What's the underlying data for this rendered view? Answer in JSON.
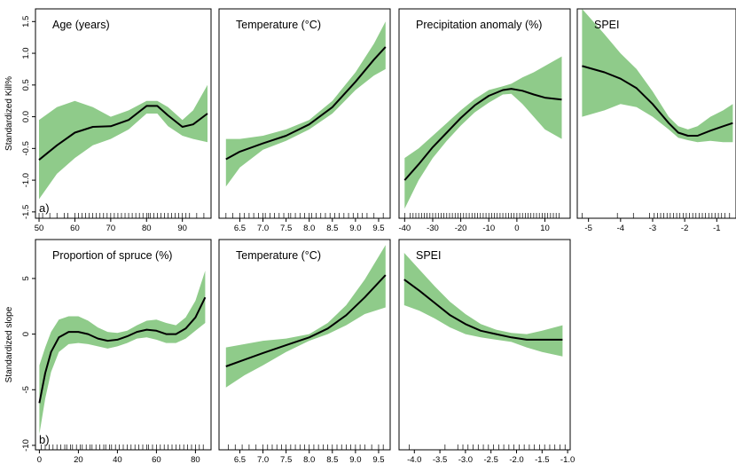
{
  "chart_data": [
    {
      "type": "line",
      "row": 1,
      "col": 0,
      "title": "Age (years)",
      "ylabel": "Standardized Kill%",
      "panel_label": "a)",
      "xlim": [
        49,
        98
      ],
      "ylim": [
        -1.6,
        1.7
      ],
      "xticks": [
        50,
        60,
        70,
        80,
        90
      ],
      "xtick_labels": [
        "50",
        "60",
        "70",
        "80",
        "90"
      ],
      "yticks": [
        -1.5,
        -1.0,
        -0.5,
        0.0,
        0.5,
        1.0,
        1.5
      ],
      "ytick_labels": [
        "-1.5",
        "-1.0",
        "-0.5",
        "0.0",
        "0.5",
        "1.0",
        "1.5"
      ],
      "fit": {
        "x": [
          50,
          55,
          60,
          65,
          70,
          75,
          80,
          83,
          86,
          90,
          93,
          97
        ],
        "y": [
          -0.68,
          -0.45,
          -0.25,
          -0.16,
          -0.15,
          -0.05,
          0.17,
          0.17,
          0.02,
          -0.16,
          -0.12,
          0.05
        ]
      },
      "ci_upper": [
        -0.05,
        0.15,
        0.25,
        0.15,
        0.0,
        0.1,
        0.25,
        0.25,
        0.15,
        -0.05,
        0.1,
        0.5
      ],
      "ci_lower": [
        -1.3,
        -0.9,
        -0.65,
        -0.45,
        -0.35,
        -0.2,
        0.05,
        0.05,
        -0.15,
        -0.3,
        -0.35,
        -0.4
      ],
      "rug": [
        50,
        51,
        53,
        55,
        57,
        58,
        60,
        61,
        62,
        63,
        64,
        65,
        66,
        67,
        68,
        69,
        70,
        71,
        72,
        73,
        74,
        75,
        76,
        77,
        78,
        79,
        80,
        80.5,
        81,
        82,
        83,
        84,
        85,
        86,
        87,
        88,
        89,
        90,
        91,
        92,
        94,
        96
      ]
    },
    {
      "type": "line",
      "row": 1,
      "col": 1,
      "title": "Temperature (°C)",
      "xlim": [
        6.05,
        9.75
      ],
      "ylim": [
        -1.6,
        1.7
      ],
      "xticks": [
        6.5,
        7.0,
        7.5,
        8.0,
        8.5,
        9.0,
        9.5
      ],
      "xtick_labels": [
        "6.5",
        "7.0",
        "7.5",
        "8.0",
        "8.5",
        "9.0",
        "9.5"
      ],
      "fit": {
        "x": [
          6.2,
          6.5,
          7.0,
          7.5,
          8.0,
          8.5,
          9.0,
          9.4,
          9.65
        ],
        "y": [
          -0.67,
          -0.55,
          -0.42,
          -0.3,
          -0.12,
          0.15,
          0.55,
          0.9,
          1.1
        ]
      },
      "ci_upper": [
        -0.35,
        -0.35,
        -0.3,
        -0.2,
        -0.05,
        0.25,
        0.7,
        1.15,
        1.5
      ],
      "ci_lower": [
        -1.1,
        -0.8,
        -0.52,
        -0.38,
        -0.2,
        0.05,
        0.42,
        0.65,
        0.75
      ],
      "rug": [
        6.2,
        6.35,
        6.5,
        6.6,
        6.7,
        6.8,
        6.9,
        7.0,
        7.05,
        7.15,
        7.25,
        7.35,
        7.45,
        7.55,
        7.6,
        7.7,
        7.8,
        7.9,
        8.0,
        8.05,
        8.15,
        8.25,
        8.35,
        8.45,
        8.55,
        8.65,
        8.75,
        8.85,
        8.95,
        9.05,
        9.15,
        9.25,
        9.4,
        9.6
      ]
    },
    {
      "type": "line",
      "row": 1,
      "col": 2,
      "title": "Precipitation anomaly (%)",
      "xlim": [
        -42,
        19
      ],
      "ylim": [
        -1.6,
        1.7
      ],
      "xticks": [
        -40,
        -30,
        -20,
        -10,
        0,
        10
      ],
      "xtick_labels": [
        "-40",
        "-30",
        "-20",
        "-10",
        "0",
        "10"
      ],
      "fit": {
        "x": [
          -40,
          -35,
          -30,
          -25,
          -20,
          -15,
          -10,
          -5,
          -2,
          2,
          6,
          10,
          16
        ],
        "y": [
          -1.0,
          -0.75,
          -0.48,
          -0.25,
          -0.02,
          0.18,
          0.33,
          0.42,
          0.44,
          0.41,
          0.35,
          0.3,
          0.27
        ]
      },
      "ci_upper": [
        -0.65,
        -0.5,
        -0.3,
        -0.1,
        0.1,
        0.28,
        0.42,
        0.48,
        0.52,
        0.62,
        0.7,
        0.8,
        0.95
      ],
      "ci_lower": [
        -1.45,
        -1.0,
        -0.65,
        -0.38,
        -0.14,
        0.07,
        0.22,
        0.35,
        0.36,
        0.2,
        0.0,
        -0.2,
        -0.35
      ],
      "rug": [
        -40,
        -38,
        -37,
        -36,
        -35,
        -34,
        -33,
        -32,
        -31,
        -30,
        -29,
        -28,
        -27,
        -26,
        -25,
        -24,
        -23,
        -22,
        -21,
        -20,
        -19,
        -18,
        -17,
        -16,
        -15,
        -14,
        -13,
        -12,
        -11,
        -10,
        -9,
        -8,
        -7,
        -6,
        -5,
        -4,
        -3,
        -2,
        -1,
        0,
        1,
        2,
        3,
        4,
        5,
        6,
        7,
        8,
        9,
        10,
        11,
        12,
        13,
        14,
        15
      ]
    },
    {
      "type": "line",
      "row": 1,
      "col": 3,
      "title": "SPEI",
      "xlim": [
        -5.35,
        -0.4
      ],
      "ylim": [
        -1.6,
        1.7
      ],
      "xticks": [
        -5,
        -4,
        -3,
        -2,
        -1
      ],
      "xtick_labels": [
        "-5",
        "-4",
        "-3",
        "-2",
        "-1"
      ],
      "fit": {
        "x": [
          -5.2,
          -4.5,
          -4.0,
          -3.5,
          -3.0,
          -2.5,
          -2.2,
          -1.9,
          -1.6,
          -1.2,
          -0.8,
          -0.5
        ],
        "y": [
          0.8,
          0.7,
          0.6,
          0.45,
          0.2,
          -0.1,
          -0.25,
          -0.3,
          -0.3,
          -0.22,
          -0.15,
          -0.1
        ]
      },
      "ci_upper": [
        1.7,
        1.3,
        1.0,
        0.75,
        0.4,
        0.0,
        -0.15,
        -0.2,
        -0.15,
        0.0,
        0.1,
        0.2
      ],
      "ci_lower": [
        0.0,
        0.1,
        0.2,
        0.15,
        0.0,
        -0.2,
        -0.33,
        -0.37,
        -0.4,
        -0.38,
        -0.4,
        -0.4
      ],
      "rug": [
        -5.2,
        -4.1,
        -3.6,
        -3.1,
        -2.95,
        -2.85,
        -2.75,
        -2.65,
        -2.55,
        -2.45,
        -2.35,
        -2.25,
        -2.15,
        -2.05,
        -1.95,
        -1.85,
        -1.75,
        -1.65,
        -1.55,
        -1.45,
        -1.35,
        -1.25,
        -1.15,
        -1.05,
        -0.95,
        -0.85,
        -0.75,
        -0.6
      ]
    },
    {
      "type": "line",
      "row": 2,
      "col": 0,
      "title": "Proportion of spruce (%)",
      "ylabel": "Standardized slope",
      "panel_label": "b)",
      "xlim": [
        -2,
        88
      ],
      "ylim": [
        -10.4,
        8.5
      ],
      "xticks": [
        0,
        20,
        40,
        60,
        80
      ],
      "xtick_labels": [
        "0",
        "20",
        "40",
        "60",
        "80"
      ],
      "yticks": [
        -10,
        -5,
        0,
        5
      ],
      "ytick_labels": [
        "-10",
        "-5",
        "0",
        "5"
      ],
      "fit": {
        "x": [
          0,
          3,
          6,
          10,
          15,
          20,
          25,
          30,
          35,
          40,
          45,
          50,
          55,
          60,
          65,
          70,
          75,
          80,
          85
        ],
        "y": [
          -6.2,
          -3.5,
          -1.6,
          -0.3,
          0.2,
          0.2,
          0.0,
          -0.4,
          -0.6,
          -0.5,
          -0.2,
          0.2,
          0.4,
          0.3,
          0.0,
          0.0,
          0.5,
          1.5,
          3.3
        ]
      },
      "ci_upper": [
        -2.8,
        -1.2,
        0.2,
        1.3,
        1.6,
        1.6,
        1.2,
        0.6,
        0.2,
        0.1,
        0.3,
        0.8,
        1.2,
        1.3,
        1.0,
        0.8,
        1.5,
        3.0,
        5.7
      ],
      "ci_lower": [
        -9.0,
        -5.8,
        -3.4,
        -1.6,
        -0.9,
        -0.8,
        -0.9,
        -1.1,
        -1.3,
        -1.1,
        -0.8,
        -0.4,
        -0.3,
        -0.5,
        -0.8,
        -0.8,
        -0.4,
        0.3,
        1.0
      ],
      "rug": [
        1,
        3,
        5,
        7,
        9,
        11,
        13,
        14,
        16,
        17,
        19,
        21,
        22,
        24,
        26,
        27,
        29,
        31,
        33,
        34,
        36,
        37,
        39,
        41,
        43,
        45,
        47,
        49,
        51,
        53,
        55,
        56,
        58,
        60,
        62,
        64,
        66,
        68,
        70,
        72,
        74,
        76,
        78,
        80,
        82,
        84
      ]
    },
    {
      "type": "line",
      "row": 2,
      "col": 1,
      "title": "Temperature (°C)",
      "xlim": [
        6.05,
        9.75
      ],
      "ylim": [
        -10.4,
        8.5
      ],
      "xticks": [
        6.5,
        7.0,
        7.5,
        8.0,
        8.5,
        9.0,
        9.5
      ],
      "xtick_labels": [
        "6.5",
        "7.0",
        "7.5",
        "8.0",
        "8.5",
        "9.0",
        "9.5"
      ],
      "fit": {
        "x": [
          6.2,
          6.6,
          7.0,
          7.5,
          8.0,
          8.4,
          8.8,
          9.2,
          9.65
        ],
        "y": [
          -2.9,
          -2.3,
          -1.7,
          -1.0,
          -0.3,
          0.5,
          1.7,
          3.3,
          5.3
        ]
      },
      "ci_upper": [
        -1.2,
        -0.9,
        -0.6,
        -0.4,
        0.0,
        1.0,
        2.6,
        4.9,
        8.0
      ],
      "ci_lower": [
        -4.8,
        -3.7,
        -2.8,
        -1.6,
        -0.6,
        0.0,
        0.8,
        1.8,
        2.4
      ],
      "rug": [
        6.25,
        6.4,
        6.55,
        6.7,
        6.85,
        7.0,
        7.1,
        7.2,
        7.3,
        7.4,
        7.5,
        7.6,
        7.7,
        7.8,
        7.9,
        8.0,
        8.1,
        8.2,
        8.3,
        8.4,
        8.5,
        8.6,
        8.7,
        8.8,
        8.9,
        9.0,
        9.1,
        9.2,
        9.35,
        9.5,
        9.6
      ]
    },
    {
      "type": "line",
      "row": 2,
      "col": 2,
      "title": "SPEI",
      "xlim": [
        -4.3,
        -0.95
      ],
      "ylim": [
        -10.4,
        8.5
      ],
      "xticks": [
        -4.0,
        -3.5,
        -3.0,
        -2.5,
        -2.0,
        -1.5,
        -1.0
      ],
      "xtick_labels": [
        "-4.0",
        "-3.5",
        "-3.0",
        "-2.5",
        "-2.0",
        "-1.5",
        "-1.0"
      ],
      "fit": {
        "x": [
          -4.2,
          -3.9,
          -3.6,
          -3.3,
          -3.0,
          -2.7,
          -2.4,
          -2.1,
          -1.8,
          -1.5,
          -1.1
        ],
        "y": [
          4.9,
          3.9,
          2.8,
          1.7,
          0.9,
          0.3,
          0.0,
          -0.3,
          -0.5,
          -0.5,
          -0.5
        ]
      },
      "ci_upper": [
        7.3,
        5.8,
        4.3,
        2.9,
        1.8,
        0.9,
        0.4,
        0.1,
        0.0,
        0.3,
        0.8
      ],
      "ci_lower": [
        2.6,
        2.1,
        1.4,
        0.6,
        0.0,
        -0.3,
        -0.5,
        -0.7,
        -1.2,
        -1.6,
        -2.0
      ],
      "rug": [
        -4.1,
        -3.4,
        -3.15,
        -3.05,
        -2.95,
        -2.85,
        -2.75,
        -2.65,
        -2.55,
        -2.45,
        -2.35,
        -2.25,
        -2.15,
        -2.05,
        -1.95,
        -1.85,
        -1.75,
        -1.65,
        -1.55,
        -1.45,
        -1.35,
        -1.25,
        -1.15,
        -1.05
      ]
    }
  ]
}
